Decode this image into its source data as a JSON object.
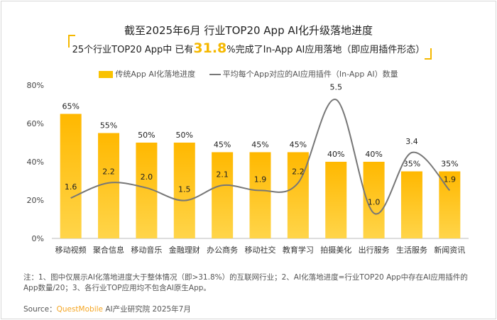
{
  "chart_data": {
    "type": "bar+line",
    "title": "截至2025年6月 行业TOP20 App AI化升级落地进度",
    "subtitle": {
      "prefix": "25个行业TOP20 App中 已有",
      "highlight": "31.8",
      "suffix": "%完成了In-App AI应用落地（即应用插件形态）"
    },
    "categories": [
      "移动视频",
      "聚合信息",
      "移动音乐",
      "金融理财",
      "办公商务",
      "移动社交",
      "教育学习",
      "拍摄美化",
      "出行服务",
      "生活服务",
      "新闻资讯"
    ],
    "series": [
      {
        "name": "传统App AI化落地进度",
        "type": "bar",
        "values": [
          65,
          55,
          50,
          50,
          45,
          45,
          45,
          40,
          40,
          35,
          35
        ],
        "labels": [
          "65%",
          "55%",
          "50%",
          "50%",
          "45%",
          "45%",
          "45%",
          "40%",
          "40%",
          "35%",
          "35%"
        ],
        "color": "#F9C200"
      },
      {
        "name": "平均每个App对应的AI应用插件（In-App AI）数量",
        "type": "line",
        "values": [
          1.6,
          2.2,
          2.0,
          1.5,
          2.1,
          1.9,
          2.2,
          5.5,
          1.0,
          3.4,
          1.9
        ],
        "labels": [
          "1.6",
          "2.2",
          "2.0",
          "1.5",
          "2.1",
          "1.9",
          "2.2",
          "5.5",
          "1.0",
          "3.4",
          "1.9"
        ],
        "color": "#777777"
      }
    ],
    "yticks": [
      "0%",
      "20%",
      "40%",
      "60%",
      "80%"
    ],
    "ylim": [
      0,
      80
    ],
    "y2lim": [
      0,
      6.07
    ],
    "legend": "top"
  },
  "note": "注：1、图中仅展示AI化落地进度大于整体情况（即>31.8%）的互联网行业；2、AI化落地进度=行业TOP20 App中存在AI应用插件的App数量/20；3、各行业TOP应用均不包含AI原生App。",
  "source": {
    "label": "Source：",
    "brand": "QuestMobile",
    "rest": " AI产业研究院 2025年7月"
  }
}
